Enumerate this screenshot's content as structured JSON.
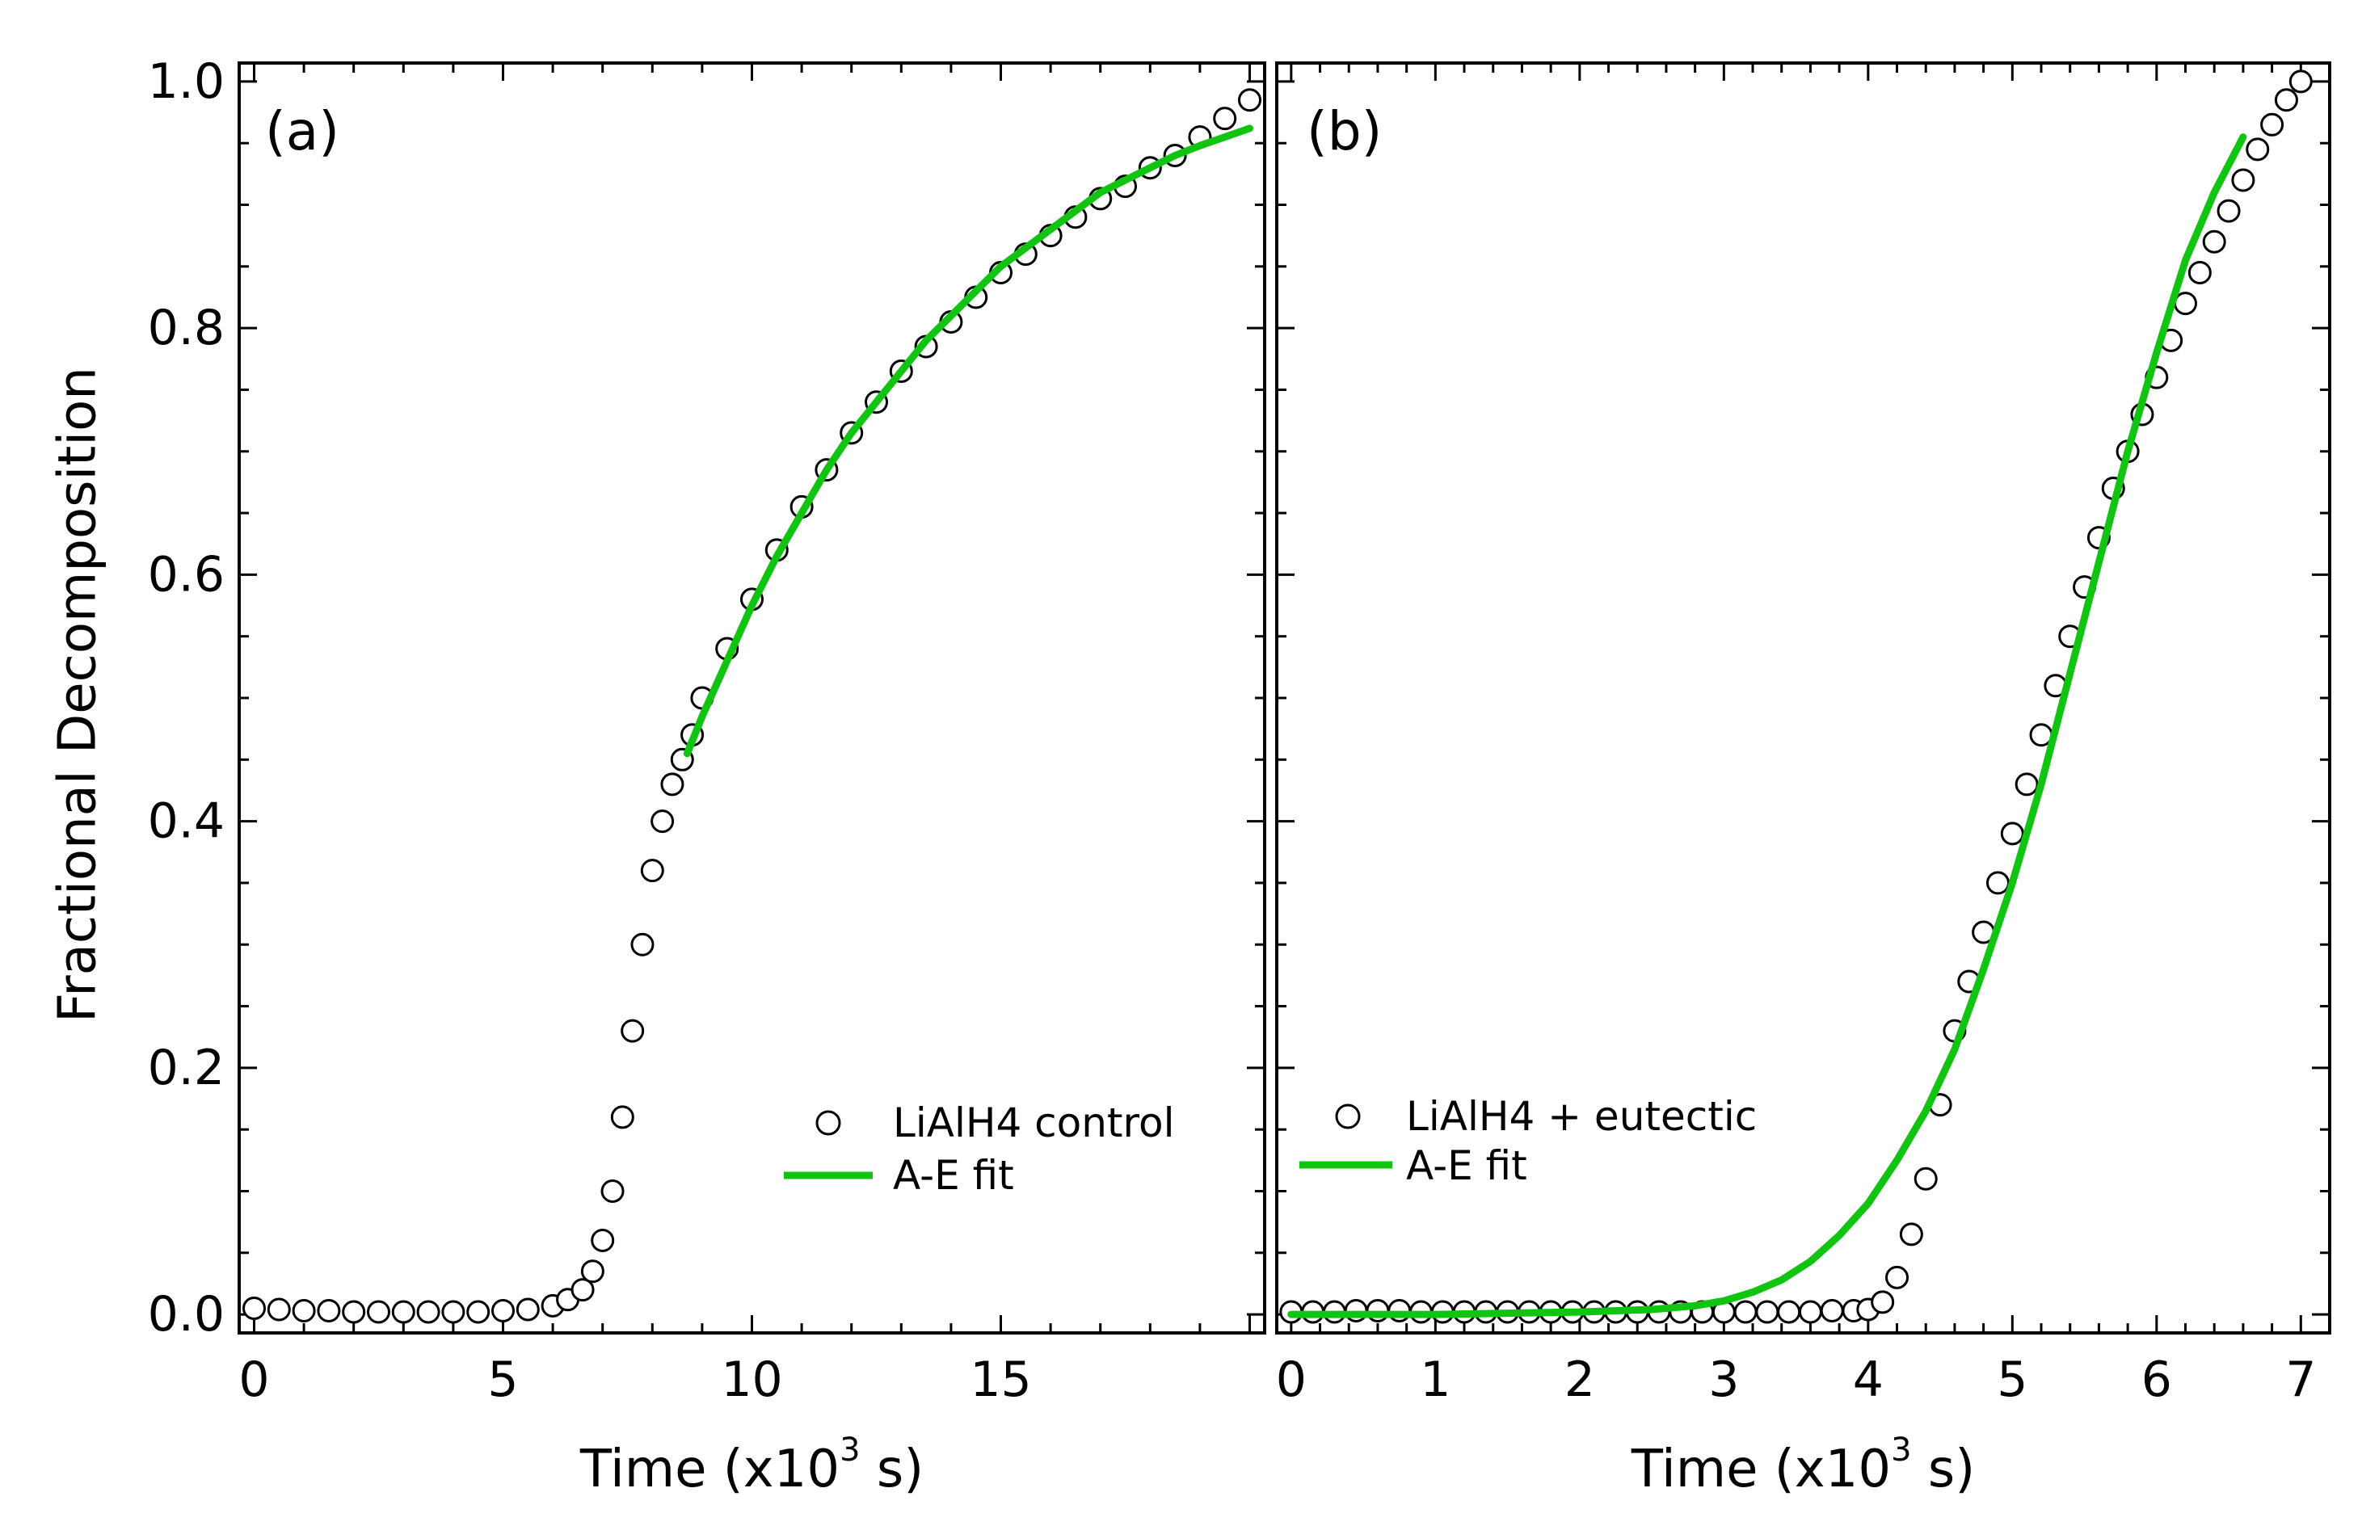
{
  "ylabel": "Fractional Decomposition",
  "colors": {
    "marker_edge": "#000000",
    "marker_fill": "#ffffff",
    "fit": "#11c411",
    "frame": "#000000"
  },
  "chart_data": [
    {
      "type": "scatter",
      "panel": "(a)",
      "xlabel": "Time (x10",
      "xlabel_exp": "3",
      "xlabel_unit": "s)",
      "ylabel": "Fractional Decomposition",
      "xlim": [
        -0.3,
        20.3
      ],
      "ylim": [
        -0.015,
        1.015
      ],
      "xticks": [
        0,
        5,
        10,
        15
      ],
      "xtick_labels": [
        "0",
        "5",
        "10",
        "15"
      ],
      "yticks": [
        0,
        0.2,
        0.4,
        0.6,
        0.8,
        1.0
      ],
      "ytick_labels": [
        "0.0",
        "0.2",
        "0.4",
        "0.6",
        "0.8",
        "1.0"
      ],
      "legend_position": "lower-right",
      "series": [
        {
          "name": "LiAlH4 control",
          "kind": "markers",
          "x": [
            0,
            0.5,
            1,
            1.5,
            2,
            2.5,
            3,
            3.5,
            4,
            4.5,
            5,
            5.5,
            6,
            6.3,
            6.6,
            6.8,
            7,
            7.2,
            7.4,
            7.6,
            7.8,
            8,
            8.2,
            8.4,
            8.6,
            8.8,
            9,
            9.5,
            10,
            10.5,
            11,
            11.5,
            12,
            12.5,
            13,
            13.5,
            14,
            14.5,
            15,
            15.5,
            16,
            16.5,
            17,
            17.5,
            18,
            18.5,
            19,
            19.5,
            20
          ],
          "y": [
            0.005,
            0.004,
            0.003,
            0.003,
            0.002,
            0.002,
            0.002,
            0.002,
            0.002,
            0.002,
            0.003,
            0.004,
            0.007,
            0.012,
            0.02,
            0.035,
            0.06,
            0.1,
            0.16,
            0.23,
            0.3,
            0.36,
            0.4,
            0.43,
            0.45,
            0.47,
            0.5,
            0.54,
            0.58,
            0.62,
            0.655,
            0.685,
            0.715,
            0.74,
            0.765,
            0.785,
            0.805,
            0.825,
            0.845,
            0.86,
            0.875,
            0.89,
            0.905,
            0.915,
            0.93,
            0.94,
            0.955,
            0.97,
            0.985
          ]
        },
        {
          "name": "A-E fit",
          "kind": "line",
          "x": [
            8.7,
            9,
            9.5,
            10,
            10.5,
            11,
            11.5,
            12,
            12.5,
            13,
            13.5,
            14,
            14.5,
            15,
            15.5,
            16,
            16.5,
            17,
            17.5,
            18,
            18.5,
            19,
            19.5,
            20
          ],
          "y": [
            0.455,
            0.485,
            0.53,
            0.575,
            0.615,
            0.65,
            0.685,
            0.715,
            0.74,
            0.765,
            0.79,
            0.81,
            0.83,
            0.85,
            0.865,
            0.88,
            0.895,
            0.91,
            0.92,
            0.93,
            0.94,
            0.948,
            0.955,
            0.962
          ]
        }
      ]
    },
    {
      "type": "scatter",
      "panel": "(b)",
      "xlabel": "Time (x10",
      "xlabel_exp": "3",
      "xlabel_unit": "s)",
      "xlim": [
        -0.1,
        7.2
      ],
      "ylim": [
        -0.015,
        1.015
      ],
      "xticks": [
        0,
        1,
        2,
        3,
        4,
        5,
        6,
        7
      ],
      "xtick_labels": [
        "0",
        "1",
        "2",
        "3",
        "4",
        "5",
        "6",
        "7"
      ],
      "legend_position": "lower-left",
      "series": [
        {
          "name": "LiAlH4 + eutectic",
          "kind": "markers",
          "x": [
            0,
            0.15,
            0.3,
            0.45,
            0.6,
            0.75,
            0.9,
            1.05,
            1.2,
            1.35,
            1.5,
            1.65,
            1.8,
            1.95,
            2.1,
            2.25,
            2.4,
            2.55,
            2.7,
            2.85,
            3,
            3.15,
            3.3,
            3.45,
            3.6,
            3.75,
            3.9,
            4,
            4.1,
            4.2,
            4.3,
            4.4,
            4.5,
            4.6,
            4.7,
            4.8,
            4.9,
            5,
            5.1,
            5.2,
            5.3,
            5.4,
            5.5,
            5.6,
            5.7,
            5.8,
            5.9,
            6,
            6.1,
            6.2,
            6.3,
            6.4,
            6.5,
            6.6,
            6.7,
            6.8,
            6.9,
            7
          ],
          "y": [
            0.002,
            0.002,
            0.002,
            0.003,
            0.003,
            0.003,
            0.002,
            0.002,
            0.002,
            0.002,
            0.002,
            0.002,
            0.002,
            0.002,
            0.002,
            0.002,
            0.002,
            0.002,
            0.002,
            0.002,
            0.002,
            0.002,
            0.002,
            0.002,
            0.002,
            0.003,
            0.003,
            0.004,
            0.01,
            0.03,
            0.065,
            0.11,
            0.17,
            0.23,
            0.27,
            0.31,
            0.35,
            0.39,
            0.43,
            0.47,
            0.51,
            0.55,
            0.59,
            0.63,
            0.67,
            0.7,
            0.73,
            0.76,
            0.79,
            0.82,
            0.845,
            0.87,
            0.895,
            0.92,
            0.945,
            0.965,
            0.985,
            1.0
          ]
        },
        {
          "name": "A-E fit",
          "kind": "line",
          "x": [
            0,
            0.5,
            1,
            1.5,
            2,
            2.5,
            2.8,
            3,
            3.2,
            3.4,
            3.6,
            3.8,
            4,
            4.2,
            4.4,
            4.6,
            4.8,
            5,
            5.2,
            5.4,
            5.6,
            5.8,
            6,
            6.2,
            6.4,
            6.6
          ],
          "y": [
            0,
            0,
            0,
            0.001,
            0.002,
            0.004,
            0.007,
            0.011,
            0.018,
            0.028,
            0.043,
            0.064,
            0.09,
            0.125,
            0.165,
            0.215,
            0.28,
            0.35,
            0.43,
            0.52,
            0.61,
            0.7,
            0.78,
            0.855,
            0.91,
            0.955
          ]
        }
      ]
    }
  ]
}
